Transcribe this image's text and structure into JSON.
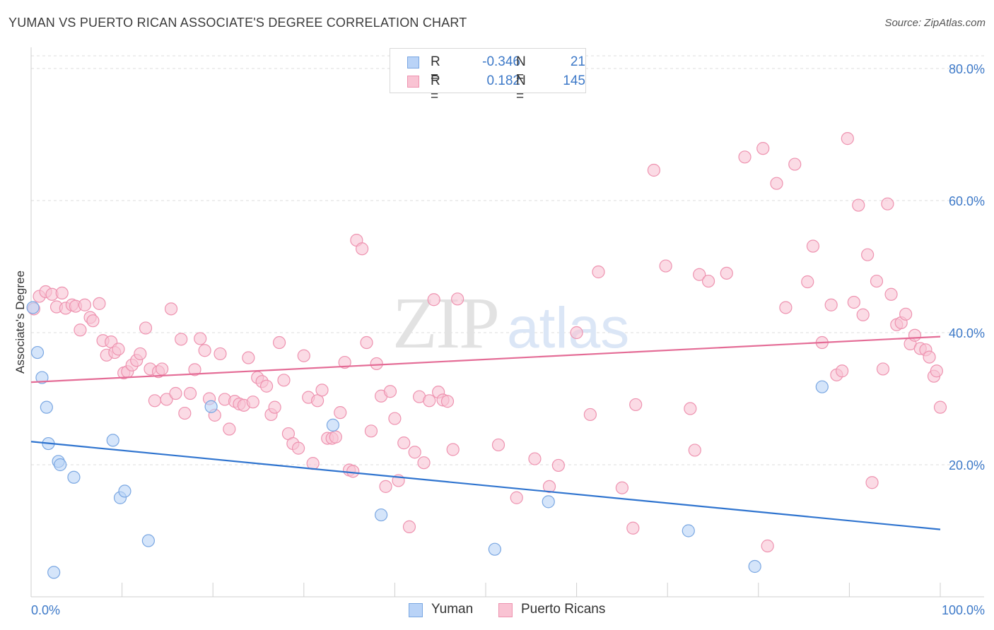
{
  "title": "YUMAN VS PUERTO RICAN ASSOCIATE'S DEGREE CORRELATION CHART",
  "source": "Source: ZipAtlas.com",
  "watermark": {
    "zip": "ZIP",
    "atlas": "atlas"
  },
  "colors": {
    "yuman_fill": "#b9d3f7",
    "yuman_stroke": "#7aa7e2",
    "yuman_line": "#2f74cf",
    "pr_fill": "#f9c3d3",
    "pr_stroke": "#ee93b0",
    "pr_line": "#e46c96",
    "tick_label": "#3d79c8",
    "grid": "#dddddd"
  },
  "legend": {
    "rows": [
      {
        "r_label": "R =",
        "r_value": "-0.346",
        "n_label": "N =",
        "n_value": "21"
      },
      {
        "r_label": "R =",
        "r_value": "0.182",
        "n_label": "N =",
        "n_value": "145"
      }
    ]
  },
  "bottom_legend": {
    "yuman": "Yuman",
    "pr": "Puerto Ricans"
  },
  "chart_data": {
    "type": "scatter",
    "title": "YUMAN VS PUERTO RICAN ASSOCIATE'S DEGREE CORRELATION CHART",
    "ylabel": "Associate's Degree",
    "xlim": [
      0,
      100
    ],
    "ylim": [
      0,
      80
    ],
    "x_tick_labels": [
      "0.0%",
      "100.0%"
    ],
    "y_ticks": [
      20,
      40,
      60,
      80
    ],
    "y_tick_labels": [
      "20.0%",
      "40.0%",
      "60.0%",
      "80.0%"
    ],
    "grid": "horizontal dashed",
    "legend_position": "top-center",
    "series": [
      {
        "name": "Yuman",
        "trend": [
          [
            0,
            23.5
          ],
          [
            100,
            10.2
          ]
        ],
        "points": [
          [
            0.2,
            43.8
          ],
          [
            0.7,
            37
          ],
          [
            1.2,
            33.2
          ],
          [
            1.7,
            28.7
          ],
          [
            1.9,
            23.2
          ],
          [
            3.0,
            20.5
          ],
          [
            3.2,
            20.0
          ],
          [
            4.7,
            18.1
          ],
          [
            9.0,
            23.7
          ],
          [
            9.8,
            15.0
          ],
          [
            10.3,
            16.0
          ],
          [
            12.9,
            8.5
          ],
          [
            2.5,
            3.7
          ],
          [
            19.8,
            28.8
          ],
          [
            33.2,
            26.0
          ],
          [
            38.5,
            12.4
          ],
          [
            51.0,
            7.2
          ],
          [
            56.9,
            14.4
          ],
          [
            72.3,
            10.0
          ],
          [
            79.6,
            4.6
          ],
          [
            87.0,
            31.8
          ]
        ]
      },
      {
        "name": "Puerto Ricans",
        "trend": [
          [
            0,
            32.5
          ],
          [
            100,
            39.4
          ]
        ],
        "points": [
          [
            0.3,
            43.6
          ],
          [
            0.9,
            45.5
          ],
          [
            1.6,
            46.2
          ],
          [
            2.3,
            45.8
          ],
          [
            2.8,
            43.9
          ],
          [
            3.4,
            46.0
          ],
          [
            3.8,
            43.7
          ],
          [
            4.5,
            44.2
          ],
          [
            4.9,
            44.0
          ],
          [
            5.4,
            40.4
          ],
          [
            5.9,
            44.2
          ],
          [
            6.5,
            42.3
          ],
          [
            6.8,
            41.8
          ],
          [
            7.5,
            44.4
          ],
          [
            7.9,
            38.8
          ],
          [
            8.3,
            36.6
          ],
          [
            8.8,
            38.6
          ],
          [
            9.2,
            37.0
          ],
          [
            9.6,
            37.5
          ],
          [
            10.2,
            33.9
          ],
          [
            10.6,
            34.1
          ],
          [
            11.1,
            35.1
          ],
          [
            11.6,
            35.8
          ],
          [
            12.0,
            36.8
          ],
          [
            12.6,
            40.7
          ],
          [
            13.1,
            34.5
          ],
          [
            13.6,
            29.7
          ],
          [
            14.0,
            34.1
          ],
          [
            14.4,
            34.5
          ],
          [
            14.9,
            29.9
          ],
          [
            15.4,
            43.6
          ],
          [
            15.9,
            30.8
          ],
          [
            16.5,
            39.0
          ],
          [
            16.9,
            27.8
          ],
          [
            17.5,
            30.8
          ],
          [
            18.0,
            34.4
          ],
          [
            18.6,
            39.1
          ],
          [
            19.1,
            37.3
          ],
          [
            19.6,
            30.0
          ],
          [
            20.2,
            27.5
          ],
          [
            20.8,
            36.8
          ],
          [
            21.3,
            29.9
          ],
          [
            21.8,
            25.4
          ],
          [
            22.4,
            29.6
          ],
          [
            22.9,
            29.2
          ],
          [
            23.4,
            29.0
          ],
          [
            23.9,
            36.2
          ],
          [
            24.4,
            29.5
          ],
          [
            24.9,
            33.2
          ],
          [
            25.4,
            32.6
          ],
          [
            25.9,
            31.9
          ],
          [
            26.4,
            27.6
          ],
          [
            26.8,
            28.7
          ],
          [
            27.3,
            38.5
          ],
          [
            27.8,
            32.8
          ],
          [
            28.3,
            24.7
          ],
          [
            28.8,
            23.2
          ],
          [
            29.4,
            22.5
          ],
          [
            30.0,
            36.5
          ],
          [
            30.5,
            30.2
          ],
          [
            31.0,
            20.2
          ],
          [
            31.5,
            29.7
          ],
          [
            32.0,
            31.3
          ],
          [
            32.6,
            24.0
          ],
          [
            33.1,
            24.0
          ],
          [
            33.5,
            24.2
          ],
          [
            34.0,
            27.9
          ],
          [
            34.5,
            35.5
          ],
          [
            35.0,
            19.2
          ],
          [
            35.4,
            19.0
          ],
          [
            35.8,
            54.0
          ],
          [
            36.4,
            52.7
          ],
          [
            36.9,
            38.5
          ],
          [
            37.4,
            25.1
          ],
          [
            38.0,
            35.3
          ],
          [
            38.5,
            30.4
          ],
          [
            39.0,
            16.7
          ],
          [
            39.5,
            31.1
          ],
          [
            40.0,
            27.0
          ],
          [
            40.4,
            17.6
          ],
          [
            41.0,
            23.3
          ],
          [
            41.6,
            10.6
          ],
          [
            42.2,
            21.9
          ],
          [
            42.7,
            30.3
          ],
          [
            43.2,
            20.3
          ],
          [
            43.8,
            29.7
          ],
          [
            44.3,
            45.0
          ],
          [
            44.8,
            31.0
          ],
          [
            45.3,
            29.8
          ],
          [
            45.8,
            29.6
          ],
          [
            46.4,
            22.3
          ],
          [
            46.9,
            45.1
          ],
          [
            51.4,
            23.0
          ],
          [
            53.4,
            15.0
          ],
          [
            55.4,
            20.9
          ],
          [
            57.0,
            16.7
          ],
          [
            58.0,
            19.9
          ],
          [
            60.0,
            40.0
          ],
          [
            61.5,
            27.6
          ],
          [
            62.4,
            49.2
          ],
          [
            65.0,
            16.5
          ],
          [
            66.2,
            10.4
          ],
          [
            66.5,
            29.1
          ],
          [
            68.5,
            64.6
          ],
          [
            69.8,
            50.1
          ],
          [
            72.5,
            28.5
          ],
          [
            73.0,
            22.2
          ],
          [
            73.5,
            48.8
          ],
          [
            74.5,
            47.8
          ],
          [
            76.5,
            49.0
          ],
          [
            78.5,
            66.6
          ],
          [
            80.5,
            67.9
          ],
          [
            81.0,
            7.7
          ],
          [
            82.0,
            62.6
          ],
          [
            83.0,
            43.8
          ],
          [
            84.0,
            65.5
          ],
          [
            85.4,
            47.7
          ],
          [
            86.0,
            53.1
          ],
          [
            87.0,
            38.5
          ],
          [
            88.0,
            44.2
          ],
          [
            88.6,
            33.6
          ],
          [
            89.2,
            34.2
          ],
          [
            89.8,
            69.4
          ],
          [
            90.5,
            44.6
          ],
          [
            91.0,
            59.3
          ],
          [
            91.5,
            42.7
          ],
          [
            92.0,
            51.8
          ],
          [
            92.5,
            17.3
          ],
          [
            93.0,
            47.8
          ],
          [
            93.7,
            34.5
          ],
          [
            94.2,
            59.5
          ],
          [
            94.6,
            45.8
          ],
          [
            95.2,
            41.2
          ],
          [
            95.7,
            41.5
          ],
          [
            96.2,
            42.8
          ],
          [
            96.7,
            38.3
          ],
          [
            97.2,
            39.6
          ],
          [
            97.8,
            37.6
          ],
          [
            98.4,
            37.4
          ],
          [
            98.8,
            36.3
          ],
          [
            99.3,
            33.4
          ],
          [
            99.6,
            34.2
          ],
          [
            100.0,
            28.7
          ]
        ]
      }
    ]
  }
}
